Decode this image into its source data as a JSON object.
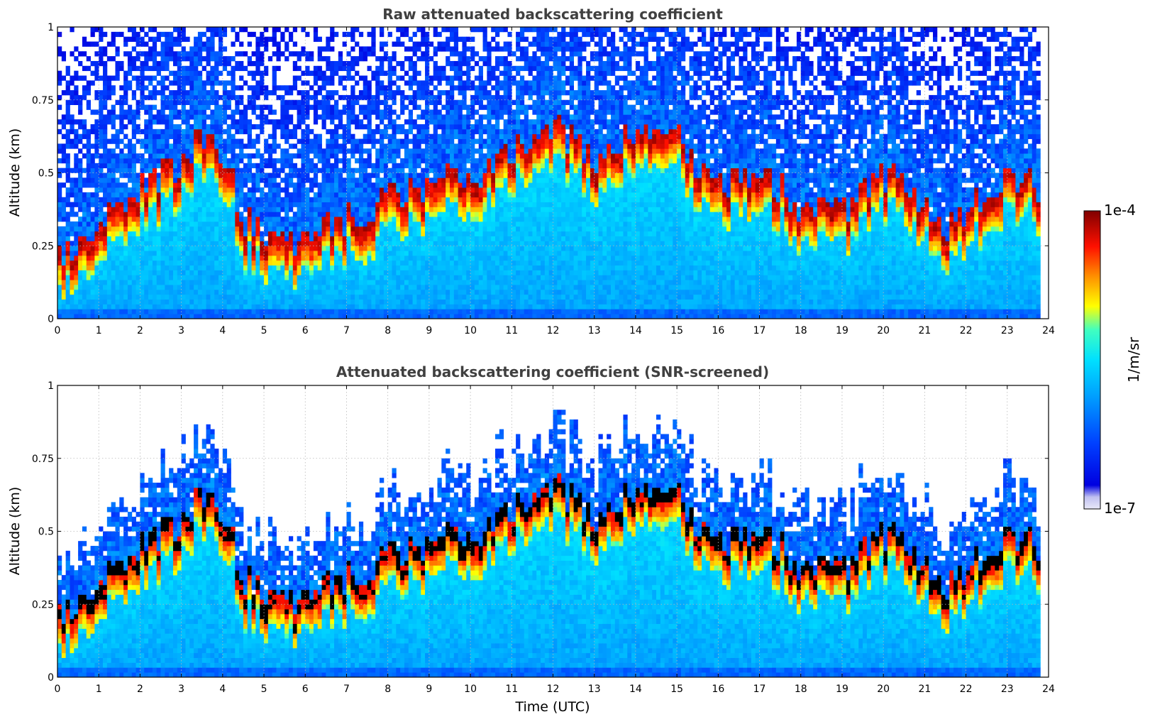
{
  "chart_data": [
    {
      "type": "heatmap",
      "id": "raw",
      "title": "Raw attenuated backscattering coefficient",
      "xlabel": "",
      "ylabel": "Altitude (km)",
      "xlim": [
        0,
        24
      ],
      "ylim": [
        0,
        1
      ],
      "xticks": [
        "0",
        "1",
        "2",
        "3",
        "4",
        "5",
        "6",
        "7",
        "8",
        "9",
        "10",
        "11",
        "12",
        "13",
        "14",
        "15",
        "16",
        "17",
        "18",
        "19",
        "20",
        "21",
        "22",
        "23",
        "24"
      ],
      "yticks": [
        "0",
        "0.25",
        "0.5",
        "0.75",
        "1"
      ],
      "grid": true,
      "screened": false,
      "data_end_hour": 23.8,
      "layer_top_km": {
        "hours": [
          0,
          0.5,
          1,
          1.5,
          2,
          2.5,
          3,
          3.5,
          4,
          4.5,
          5,
          5.5,
          6,
          6.5,
          7,
          7.5,
          8,
          8.5,
          9,
          9.5,
          10,
          10.5,
          11,
          11.5,
          12,
          12.5,
          13,
          13.5,
          14,
          14.5,
          15,
          15.5,
          16,
          16.5,
          17,
          17.5,
          18,
          18.5,
          19,
          19.5,
          20,
          20.5,
          21,
          21.5,
          22,
          22.5,
          23,
          23.5,
          23.8
        ],
        "altitude": [
          0.15,
          0.2,
          0.27,
          0.33,
          0.4,
          0.45,
          0.5,
          0.6,
          0.55,
          0.3,
          0.25,
          0.22,
          0.24,
          0.28,
          0.3,
          0.33,
          0.38,
          0.4,
          0.42,
          0.45,
          0.42,
          0.48,
          0.55,
          0.6,
          0.62,
          0.58,
          0.5,
          0.55,
          0.6,
          0.62,
          0.6,
          0.45,
          0.42,
          0.45,
          0.45,
          0.4,
          0.35,
          0.33,
          0.32,
          0.38,
          0.45,
          0.42,
          0.35,
          0.28,
          0.32,
          0.4,
          0.45,
          0.45,
          0.4
        ]
      }
    },
    {
      "type": "heatmap",
      "id": "screened",
      "title": "Attenuated backscattering coefficient (SNR-screened)",
      "xlabel": "Time (UTC)",
      "ylabel": "Altitude (km)",
      "xlim": [
        0,
        24
      ],
      "ylim": [
        0,
        1
      ],
      "xticks": [
        "0",
        "1",
        "2",
        "3",
        "4",
        "5",
        "6",
        "7",
        "8",
        "9",
        "10",
        "11",
        "12",
        "13",
        "14",
        "15",
        "16",
        "17",
        "18",
        "19",
        "20",
        "21",
        "22",
        "23",
        "24"
      ],
      "yticks": [
        "0",
        "0.25",
        "0.5",
        "0.75",
        "1"
      ],
      "grid": true,
      "screened": true,
      "data_end_hour": 23.8
    }
  ],
  "colorbar": {
    "label": "1/m/sr",
    "max_label": "1e-4",
    "min_label": "1e-7",
    "scale": "log",
    "colormap": "jet",
    "colors": [
      "#e8e8f8",
      "#0000e0",
      "#0060ff",
      "#00d0ff",
      "#40ffc0",
      "#ffff00",
      "#ff8000",
      "#ff0000",
      "#800000"
    ]
  }
}
